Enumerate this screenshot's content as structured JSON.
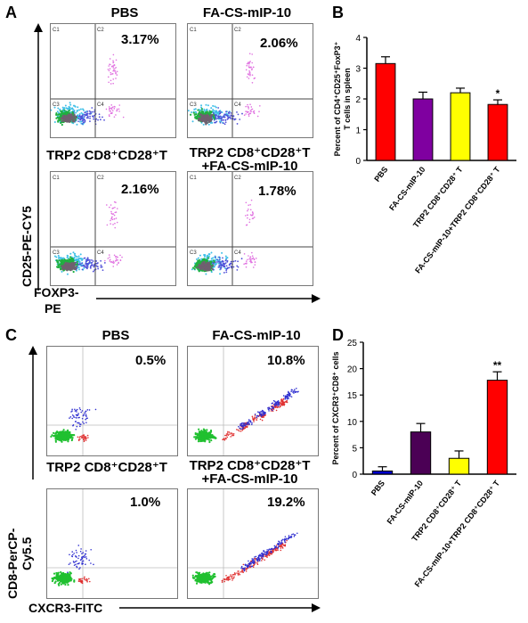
{
  "panels": {
    "A": {
      "letter": "A",
      "plots": [
        {
          "title": "PBS",
          "percent": "3.17%"
        },
        {
          "title": "FA-CS-mIP-10",
          "percent": "2.06%"
        },
        {
          "title": "TRP2 CD8⁺CD28⁺T",
          "percent": "2.16%"
        },
        {
          "title": "TRP2 CD8⁺CD28⁺T",
          "title2": "+FA-CS-mIP-10",
          "percent": "1.78%"
        }
      ],
      "quadrants": [
        "C1",
        "C2",
        "C3",
        "C4"
      ],
      "y_axis": "CD25-PE-CY5",
      "x_axis_line1": "FOXP3-",
      "x_axis_line2": "PE"
    },
    "C": {
      "letter": "C",
      "plots": [
        {
          "title": "PBS",
          "percent": "0.5%"
        },
        {
          "title": "FA-CS-mIP-10",
          "percent": "10.8%"
        },
        {
          "title": "TRP2 CD8⁺CD28⁺T",
          "percent": "1.0%"
        },
        {
          "title": "TRP2 CD8⁺CD28⁺T",
          "title2": "+FA-CS-mIP-10",
          "percent": "19.2%"
        }
      ],
      "y_axis_line1": "CD8-PerCP-",
      "y_axis_line2": "Cy5.5",
      "x_axis": "CXCR3-FITC"
    },
    "B": {
      "letter": "B"
    },
    "D": {
      "letter": "D"
    }
  },
  "chart_data": [
    {
      "type": "bar",
      "panel": "B",
      "categories": [
        "PBS",
        "FA-CS-mIP-10",
        "TRP2 CD8⁺CD28⁺ T",
        "FA-CS-mIP-10+TRP2 CD8⁺CD28⁺ T"
      ],
      "values": [
        3.15,
        2.0,
        2.2,
        1.82
      ],
      "errors": [
        0.22,
        0.22,
        0.15,
        0.15
      ],
      "colors": [
        "#ff0000",
        "#7f00a0",
        "#ffff00",
        "#ff0000"
      ],
      "significance": [
        "",
        "",
        "",
        "*"
      ],
      "ylabel_line1": "Percent of CD4⁺CD25⁺FoxP3⁺",
      "ylabel_line2": "T cells in spleen",
      "ylim": [
        0,
        4
      ],
      "yticks": [
        0,
        1,
        2,
        3,
        4
      ],
      "grid": false
    },
    {
      "type": "bar",
      "panel": "D",
      "categories": [
        "PBS",
        "FA-CS-mIP-10",
        "TRP2 CD8⁺CD28⁺ T",
        "FA-CS-mIP-10+TRP2 CD8⁺CD28⁺ T"
      ],
      "values": [
        0.6,
        8.0,
        3.0,
        17.8
      ],
      "errors": [
        0.8,
        1.6,
        1.4,
        1.6
      ],
      "colors": [
        "#0000cc",
        "#4b0055",
        "#ffff00",
        "#ff0000"
      ],
      "significance": [
        "",
        "",
        "",
        "**"
      ],
      "ylabel": "Percent of CXCR3⁺CD8⁺ cells",
      "ylim": [
        0,
        25
      ],
      "yticks": [
        0,
        5,
        10,
        15,
        20,
        25
      ],
      "grid": false
    }
  ]
}
